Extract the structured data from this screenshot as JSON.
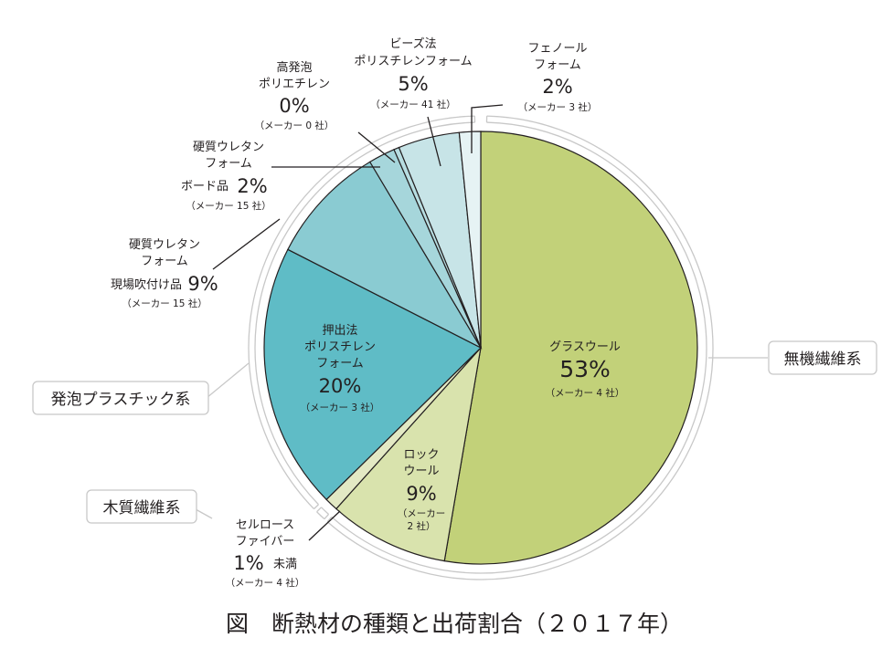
{
  "caption": "図　断熱材の種類と出荷割合（２０１７年）",
  "groups": {
    "inorganic": "無機繊維系",
    "foam": "発泡プラスチック系",
    "wood": "木質繊維系"
  },
  "labels": {
    "glass_wool": {
      "l1": "グラスウール",
      "pct": "53%",
      "maker": "（メーカー 4 社）"
    },
    "rock_wool": {
      "l1": "ロック",
      "l2": "ウール",
      "pct": "9%",
      "m1": "（メーカー",
      "m2": "2 社）"
    },
    "cellulose": {
      "l1": "セルロース",
      "l2": "ファイバー",
      "pct": "1%",
      "under": "未満",
      "maker": "（メーカー 4 社）"
    },
    "xps": {
      "l1": "押出法",
      "l2": "ポリスチレン",
      "l3": "フォーム",
      "pct": "20%",
      "maker": "（メーカー 3 社）"
    },
    "pu_spray": {
      "l1": "硬質ウレタン",
      "l2": "フォーム",
      "l3": "現場吹付け品",
      "pct": "9%",
      "maker": "（メーカー 15 社）"
    },
    "pu_board": {
      "l1": "硬質ウレタン",
      "l2": "フォーム",
      "l3": "ボード品",
      "pct": "2%",
      "maker": "（メーカー 15 社）"
    },
    "pe_foam": {
      "l1": "高発泡",
      "l2": "ポリエチレン",
      "pct": "0%",
      "maker": "（メーカー 0 社）"
    },
    "eps": {
      "l1": "ビーズ法",
      "l2": "ポリスチレンフォーム",
      "pct": "5%",
      "maker": "（メーカー 41 社）"
    },
    "phenol": {
      "l1": "フェノール",
      "l2": "フォーム",
      "pct": "2%",
      "maker": "（メーカー 3 社）"
    }
  },
  "chart_data": {
    "type": "pie",
    "title": "図　断熱材の種類と出荷割合（２０１７年）",
    "slices": [
      {
        "key": "glass_wool",
        "label": "グラスウール",
        "value": 53,
        "group": "無機繊維系",
        "makers": 4,
        "color": "#c2d179"
      },
      {
        "key": "rock_wool",
        "label": "ロックウール",
        "value": 9,
        "group": "無機繊維系",
        "makers": 2,
        "color": "#d9e3ad"
      },
      {
        "key": "cellulose",
        "label": "セルロースファイバー",
        "value": 1,
        "value_note": "1%未満",
        "group": "木質繊維系",
        "makers": 4,
        "color": "#e3e9c4"
      },
      {
        "key": "xps",
        "label": "押出法ポリスチレンフォーム",
        "value": 20,
        "group": "発泡プラスチック系",
        "makers": 3,
        "color": "#5fbcc6"
      },
      {
        "key": "pu_spray",
        "label": "硬質ウレタンフォーム現場吹付け品",
        "value": 9,
        "group": "発泡プラスチック系",
        "makers": 15,
        "color": "#8acbd2"
      },
      {
        "key": "pu_board",
        "label": "硬質ウレタンフォームボード品",
        "value": 2,
        "group": "発泡プラスチック系",
        "makers": 15,
        "color": "#a6d6db"
      },
      {
        "key": "pe_foam",
        "label": "高発泡ポリエチレン",
        "value": 0.4,
        "value_note": "0%",
        "group": "発泡プラスチック系",
        "makers": 0,
        "color": "#b7dde1"
      },
      {
        "key": "eps",
        "label": "ビーズ法ポリスチレンフォーム",
        "value": 4.6,
        "value_note": "5%",
        "group": "発泡プラスチック系",
        "makers": 41,
        "color": "#c7e4e7"
      },
      {
        "key": "phenol",
        "label": "フェノールフォーム",
        "value": 1.6,
        "value_note": "2%",
        "group": "発泡プラスチック系",
        "makers": 3,
        "color": "#e6f3f4"
      }
    ]
  }
}
